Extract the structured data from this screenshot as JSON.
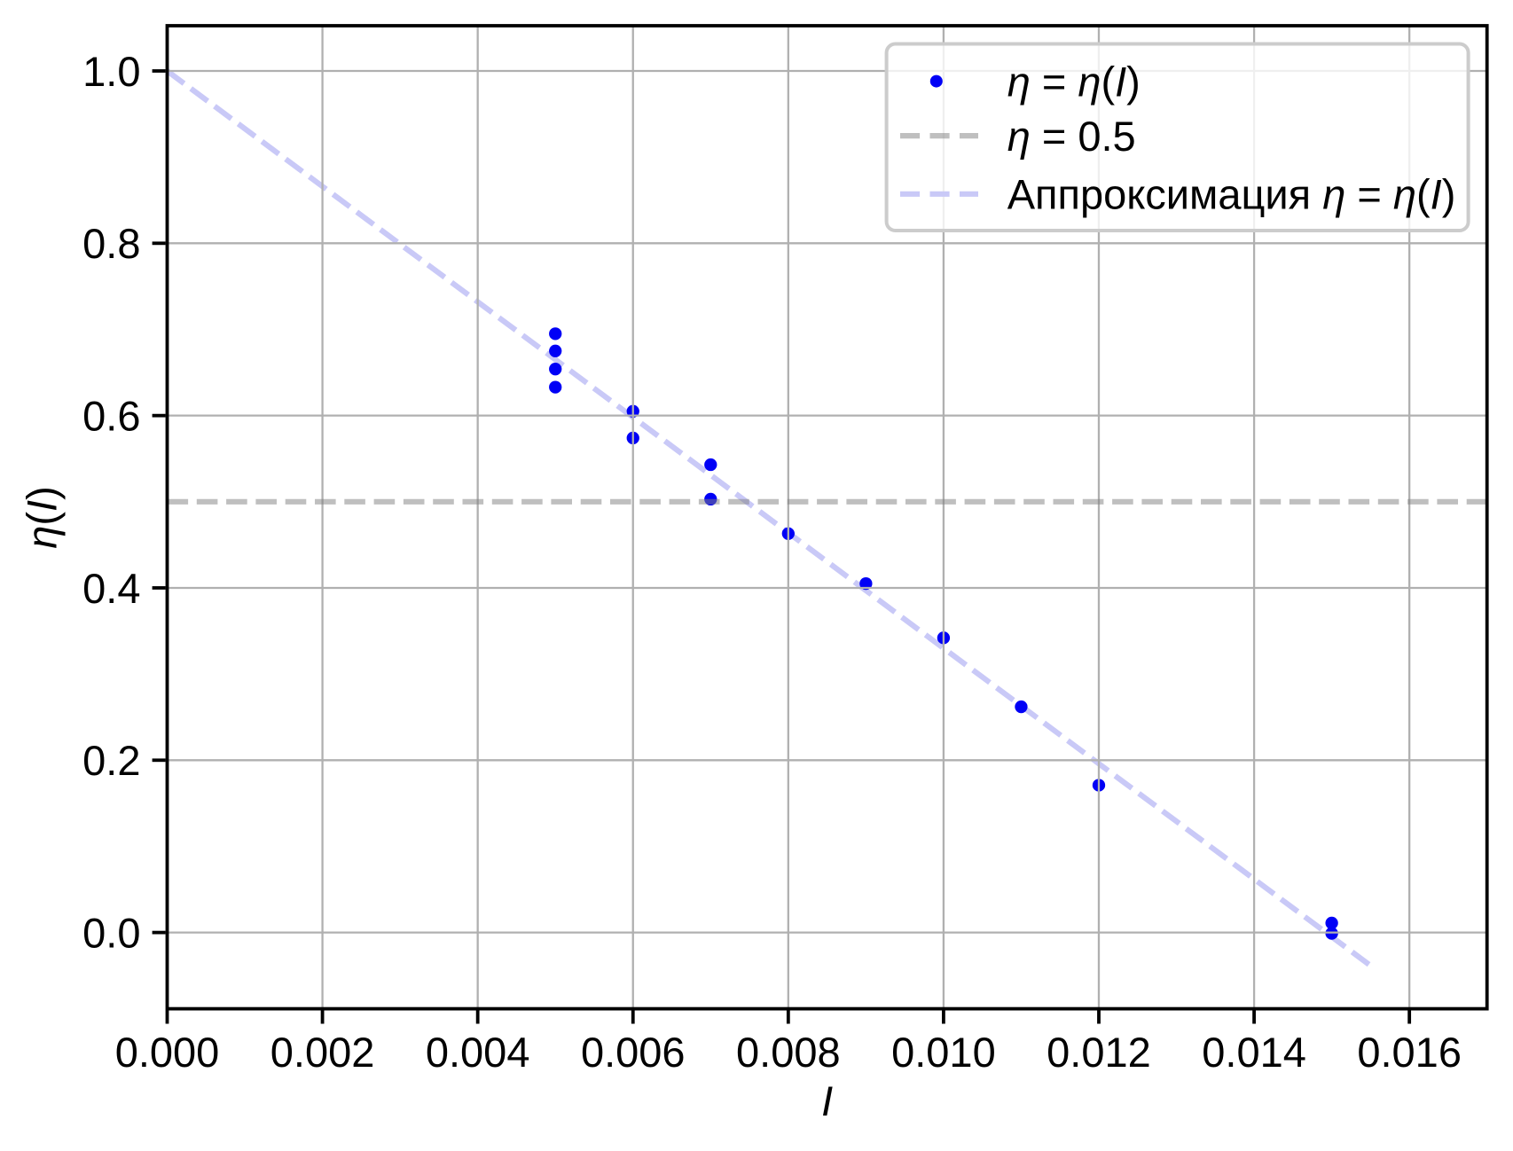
{
  "chart_data": {
    "type": "scatter",
    "title": "",
    "xlabel": "I",
    "ylabel": "η(I)",
    "xlim": [
      0.0,
      0.017
    ],
    "ylim": [
      -0.0885,
      1.0525
    ],
    "grid": true,
    "grid_color": "#b0b0b0",
    "background_color": "#ffffff",
    "x_ticks": {
      "values": [
        0.0,
        0.002,
        0.004,
        0.006,
        0.008,
        0.01,
        0.012,
        0.014,
        0.016
      ],
      "labels": [
        "0.000",
        "0.002",
        "0.004",
        "0.006",
        "0.008",
        "0.010",
        "0.012",
        "0.014",
        "0.016"
      ]
    },
    "y_ticks": {
      "values": [
        0.0,
        0.2,
        0.4,
        0.6,
        0.8,
        1.0
      ],
      "labels": [
        "0.0",
        "0.2",
        "0.4",
        "0.6",
        "0.8",
        "1.0"
      ]
    },
    "series": [
      {
        "name": "η = η(I)",
        "kind": "scatter",
        "color": "#0000f6",
        "x": [
          0.005,
          0.005,
          0.005,
          0.005,
          0.006,
          0.006,
          0.007,
          0.007,
          0.008,
          0.009,
          0.01,
          0.011,
          0.012,
          0.015,
          0.015
        ],
        "y": [
          0.695,
          0.675,
          0.654,
          0.633,
          0.605,
          0.574,
          0.543,
          0.503,
          0.463,
          0.405,
          0.342,
          0.262,
          0.171,
          0.011,
          -0.001
        ]
      },
      {
        "name": "η = 0.5",
        "kind": "hline",
        "y": 0.5,
        "color": "#808080",
        "opacity": 0.5,
        "linestyle": "dashed"
      },
      {
        "name": "Аппроксимация η = η(I)",
        "kind": "line",
        "x_range": [
          0.0,
          0.0155
        ],
        "intercept": 1.0,
        "slope": -67.0,
        "color": "#c9c9f7",
        "opacity": 1.0,
        "linestyle": "dashed"
      }
    ],
    "legend": {
      "position": "upper right",
      "entries": [
        {
          "label": "η = η(I)",
          "marker": "dot",
          "color": "#0000f6"
        },
        {
          "label": "η = 0.5",
          "marker": "dashed-line",
          "color": "#808080",
          "opacity": 0.5
        },
        {
          "label": "Аппроксимация η = η(I)",
          "marker": "dashed-line",
          "color": "#c9c9f7",
          "opacity": 1.0
        }
      ]
    }
  }
}
